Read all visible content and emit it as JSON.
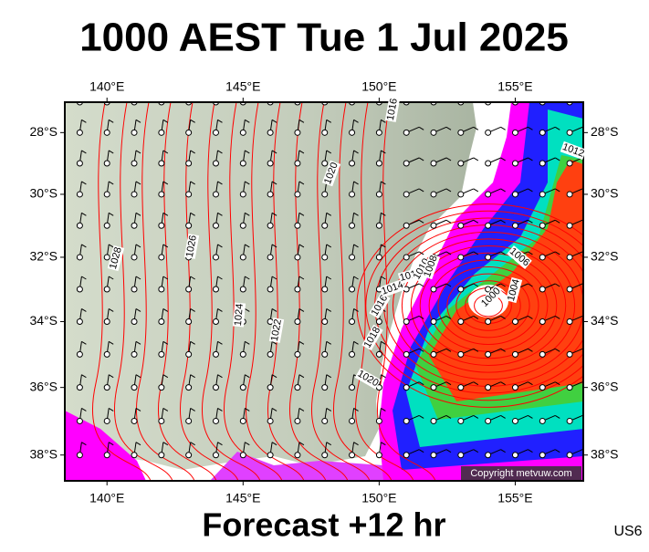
{
  "title": "1000 AEST Tue 1 Jul 2025",
  "footer": "Forecast +12 hr",
  "code": "US6",
  "copyright": "Copyright metvuw.com",
  "map": {
    "projection": "mercator",
    "xlim": [
      138.45,
      157.5
    ],
    "ylim": [
      -38.75,
      -27
    ],
    "xticks": [
      {
        "value": 140,
        "label": "140°E"
      },
      {
        "value": 145,
        "label": "145°E"
      },
      {
        "value": 150,
        "label": "150°E"
      },
      {
        "value": 155,
        "label": "155°E"
      }
    ],
    "yticks": [
      {
        "value": -28,
        "label": "28°S"
      },
      {
        "value": -30,
        "label": "30°S"
      },
      {
        "value": -32,
        "label": "32°S"
      },
      {
        "value": -34,
        "label": "34°S"
      },
      {
        "value": -36,
        "label": "36°S"
      },
      {
        "value": -38,
        "label": "38°S"
      }
    ],
    "isobar_labels": [
      "1028",
      "1026",
      "1024",
      "1022",
      "1020",
      "1020",
      "1018",
      "1016",
      "1014",
      "1012",
      "1010",
      "1008",
      "1006",
      "1000",
      "1004",
      "1012",
      "1016"
    ]
  }
}
